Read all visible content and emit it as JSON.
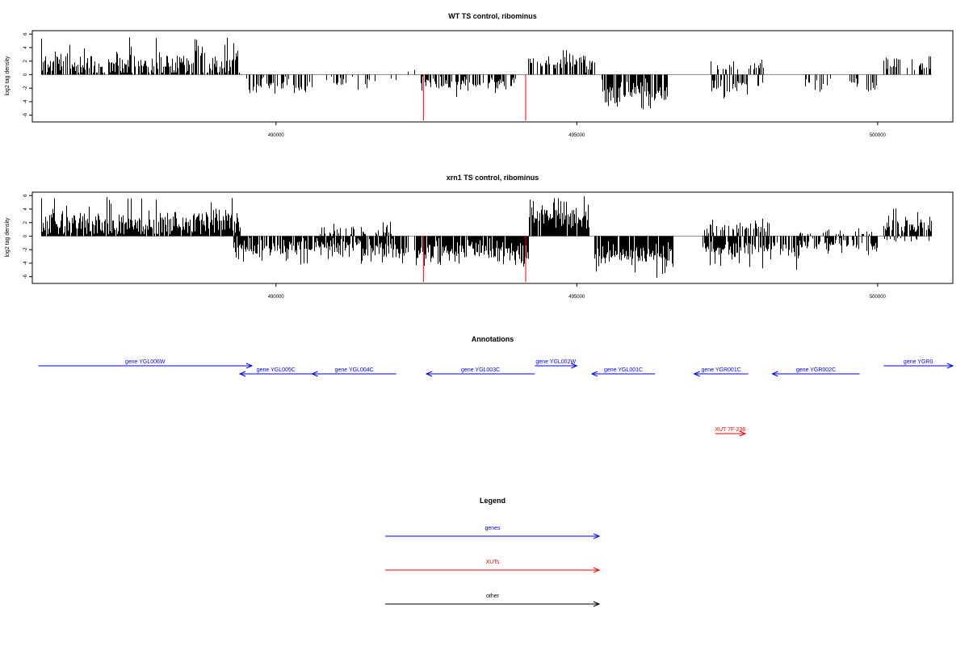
{
  "chart_data": [
    {
      "type": "bar",
      "title": "WT TS control, ribominus",
      "ylabel": "log2 tag density",
      "xlabel": "",
      "xlim": [
        485950,
        501250
      ],
      "ylim": [
        -7,
        6.5
      ],
      "y_ticks": [
        6,
        4,
        2,
        0,
        -2,
        -4,
        -6
      ],
      "x_ticks": [
        490000,
        495000,
        500000
      ],
      "x_tick_labels": [
        "490000",
        "495000",
        "500000"
      ],
      "grid": false,
      "baseline": {
        "start": 486100,
        "end": 500900,
        "color": "#888888"
      },
      "segments": [
        {
          "start": 486100,
          "end": 489400,
          "sign": 1,
          "mean": 1.6,
          "spread": 1.8,
          "max": 5.5,
          "density": 0.75
        },
        {
          "start": 489500,
          "end": 490600,
          "sign": -1,
          "mean": 1.6,
          "spread": 0.9,
          "max": 3.2,
          "density": 0.45
        },
        {
          "start": 490800,
          "end": 491700,
          "sign": -1,
          "mean": 1.0,
          "spread": 0.7,
          "max": 2.3,
          "density": 0.25
        },
        {
          "start": 491900,
          "end": 492000,
          "sign": -1,
          "mean": 1.0,
          "spread": 0.5,
          "max": 1.8,
          "density": 0.2
        },
        {
          "start": 492200,
          "end": 492300,
          "sign": 1,
          "mean": 0.6,
          "spread": 0.3,
          "max": 1.0,
          "density": 0.15
        },
        {
          "start": 492400,
          "end": 494000,
          "sign": -1,
          "mean": 1.4,
          "spread": 0.9,
          "max": 3.3,
          "density": 0.55
        },
        {
          "start": 494200,
          "end": 495300,
          "sign": 1,
          "mean": 1.8,
          "spread": 1.0,
          "max": 4.0,
          "density": 0.6
        },
        {
          "start": 495400,
          "end": 496500,
          "sign": -1,
          "mean": 2.7,
          "spread": 1.3,
          "max": 5.2,
          "density": 0.8
        },
        {
          "start": 497200,
          "end": 498100,
          "sign": 1,
          "mean": 1.3,
          "spread": 0.7,
          "max": 2.2,
          "density": 0.3
        },
        {
          "start": 497200,
          "end": 498100,
          "sign": -1,
          "mean": 1.7,
          "spread": 0.9,
          "max": 3.8,
          "density": 0.45
        },
        {
          "start": 498800,
          "end": 499300,
          "sign": -1,
          "mean": 1.4,
          "spread": 0.8,
          "max": 3.5,
          "density": 0.3
        },
        {
          "start": 499500,
          "end": 500000,
          "sign": -1,
          "mean": 1.1,
          "spread": 0.7,
          "max": 2.6,
          "density": 0.3
        },
        {
          "start": 500100,
          "end": 500900,
          "sign": 1,
          "mean": 1.4,
          "spread": 0.8,
          "max": 2.8,
          "density": 0.4
        }
      ],
      "highlights": [
        {
          "x": 492450,
          "value": -6.8,
          "color": "#ff0000"
        },
        {
          "x": 494150,
          "value": -6.8,
          "color": "#ff0000"
        }
      ]
    },
    {
      "type": "bar",
      "title": "xrn1 TS control, ribominus",
      "ylabel": "log2 tag density",
      "xlabel": "",
      "xlim": [
        485950,
        501250
      ],
      "ylim": [
        -7,
        6.5
      ],
      "y_ticks": [
        6,
        4,
        2,
        0,
        -2,
        -4,
        -6
      ],
      "x_ticks": [
        490000,
        495000,
        500000
      ],
      "x_tick_labels": [
        "490000",
        "495000",
        "500000"
      ],
      "grid": false,
      "baseline": {
        "start": 486100,
        "end": 500900,
        "color": "#888888"
      },
      "segments": [
        {
          "start": 486100,
          "end": 489400,
          "sign": 1,
          "mean": 2.0,
          "spread": 1.6,
          "max": 5.8,
          "density": 0.9
        },
        {
          "start": 489300,
          "end": 492200,
          "sign": -1,
          "mean": 1.8,
          "spread": 1.1,
          "max": 4.2,
          "density": 0.85
        },
        {
          "start": 490600,
          "end": 492000,
          "sign": 1,
          "mean": 0.8,
          "spread": 0.7,
          "max": 2.2,
          "density": 0.3
        },
        {
          "start": 492300,
          "end": 494200,
          "sign": -1,
          "mean": 2.2,
          "spread": 1.2,
          "max": 4.5,
          "density": 0.9
        },
        {
          "start": 494200,
          "end": 495200,
          "sign": 1,
          "mean": 2.8,
          "spread": 1.3,
          "max": 6.0,
          "density": 0.9
        },
        {
          "start": 495300,
          "end": 496600,
          "sign": -1,
          "mean": 3.0,
          "spread": 1.4,
          "max": 6.5,
          "density": 0.9
        },
        {
          "start": 497100,
          "end": 498200,
          "sign": 1,
          "mean": 1.3,
          "spread": 0.8,
          "max": 2.6,
          "density": 0.5
        },
        {
          "start": 497100,
          "end": 498700,
          "sign": -1,
          "mean": 1.9,
          "spread": 1.0,
          "max": 5.0,
          "density": 0.75
        },
        {
          "start": 498600,
          "end": 500000,
          "sign": -1,
          "mean": 1.3,
          "spread": 0.8,
          "max": 3.0,
          "density": 0.55
        },
        {
          "start": 498700,
          "end": 499900,
          "sign": 1,
          "mean": 0.6,
          "spread": 0.4,
          "max": 1.2,
          "density": 0.25
        },
        {
          "start": 500100,
          "end": 500900,
          "sign": 1,
          "mean": 1.6,
          "spread": 1.0,
          "max": 4.5,
          "density": 0.6
        },
        {
          "start": 500100,
          "end": 500900,
          "sign": -1,
          "mean": 0.6,
          "spread": 0.4,
          "max": 2.5,
          "density": 0.25
        }
      ],
      "highlights": [
        {
          "x": 492450,
          "value": -6.8,
          "color": "#ff0000"
        },
        {
          "x": 494150,
          "value": -6.8,
          "color": "#ff0000"
        }
      ]
    }
  ],
  "annotations": {
    "title": "Annotations",
    "xlim": [
      485950,
      501250
    ],
    "genes": [
      {
        "label": "gene YGL006W",
        "start": 486050,
        "end": 489600,
        "strand": "+",
        "row": 0,
        "color": "#0000ff"
      },
      {
        "label": "gene YGL005C",
        "start": 489400,
        "end": 490600,
        "strand": "-",
        "row": 1,
        "color": "#0000ff"
      },
      {
        "label": "gene YGL004C",
        "start": 490600,
        "end": 492000,
        "strand": "-",
        "row": 1,
        "color": "#0000ff"
      },
      {
        "label": "gene YGL003C",
        "start": 492500,
        "end": 494300,
        "strand": "-",
        "row": 1,
        "color": "#0000ff"
      },
      {
        "label": "gene YGL002W",
        "start": 494300,
        "end": 495000,
        "strand": "+",
        "row": 0,
        "color": "#0000ff"
      },
      {
        "label": "gene YGL001C",
        "start": 495250,
        "end": 496300,
        "strand": "-",
        "row": 1,
        "color": "#0000ff"
      },
      {
        "label": "gene YGR001C",
        "start": 496950,
        "end": 497850,
        "strand": "-",
        "row": 1,
        "color": "#0000ff"
      },
      {
        "label": "gene YGR002C",
        "start": 498250,
        "end": 499700,
        "strand": "-",
        "row": 1,
        "color": "#0000ff"
      },
      {
        "label": "gene YGR0",
        "start": 500100,
        "end": 501250,
        "strand": "+",
        "row": 0,
        "color": "#0000ff"
      }
    ],
    "xuts": [
      {
        "label": "XUT 7F-236",
        "start": 497300,
        "end": 497800,
        "strand": "+",
        "color": "#ff0000"
      }
    ]
  },
  "legend": {
    "title": "Legend",
    "items": [
      {
        "label": "genes",
        "color": "#0000ff"
      },
      {
        "label": "XUTs",
        "color": "#ff0000"
      },
      {
        "label": "other",
        "color": "#000000"
      }
    ]
  }
}
